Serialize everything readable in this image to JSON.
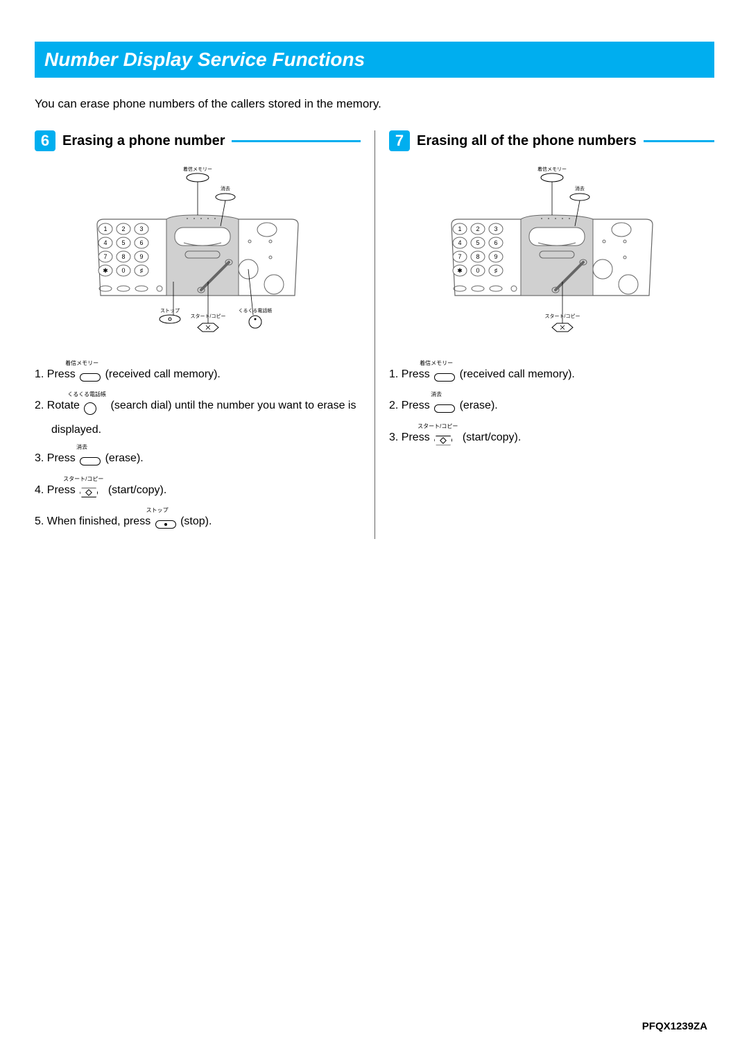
{
  "colors": {
    "accent": "#00aeef",
    "text": "#000000",
    "panel_fill": "#d0d0d0",
    "panel_stroke": "#666666",
    "background": "#ffffff"
  },
  "title": "Number Display Service Functions",
  "intro": "You can erase phone numbers of the callers stored in the memory.",
  "footer_code": "PFQX1239ZA",
  "sections": [
    {
      "number": "6",
      "title": "Erasing a phone number",
      "diagram": {
        "keypad_rows": [
          [
            "1",
            "2",
            "3"
          ],
          [
            "4",
            "5",
            "6"
          ],
          [
            "7",
            "8",
            "9"
          ],
          [
            "✱",
            "0",
            "♯"
          ]
        ],
        "callouts": {
          "top_memory": {
            "jp": "着信メモリー",
            "type": "oval"
          },
          "erase": {
            "jp": "消去",
            "type": "oval"
          },
          "stop": {
            "jp": "ストップ",
            "type": "oval-dot"
          },
          "start_copy": {
            "jp": "スタート/コピー",
            "type": "diamond"
          },
          "dial": {
            "jp": "くるくる電話帳",
            "type": "circle"
          }
        }
      },
      "steps": [
        {
          "n": "1.",
          "pre": "Press ",
          "btn": {
            "kind": "oval",
            "jp": "着信メモリー"
          },
          "post": " (received call memory)."
        },
        {
          "n": "2.",
          "pre": "Rotate ",
          "btn": {
            "kind": "circle",
            "jp": "くるくる電話帳"
          },
          "post": " (search dial) until the number you want to erase is displayed."
        },
        {
          "n": "3.",
          "pre": "Press ",
          "btn": {
            "kind": "oval",
            "jp": "消去"
          },
          "post": " (erase)."
        },
        {
          "n": "4.",
          "pre": "Press ",
          "btn": {
            "kind": "diamond",
            "jp": "スタート/コピー"
          },
          "post": " (start/copy)."
        },
        {
          "n": "5.",
          "pre": "When finished, press ",
          "btn": {
            "kind": "oval-dot",
            "jp": "ストップ"
          },
          "post": " (stop)."
        }
      ]
    },
    {
      "number": "7",
      "title": "Erasing all of the phone numbers",
      "diagram": {
        "keypad_rows": [
          [
            "1",
            "2",
            "3"
          ],
          [
            "4",
            "5",
            "6"
          ],
          [
            "7",
            "8",
            "9"
          ],
          [
            "✱",
            "0",
            "♯"
          ]
        ],
        "callouts": {
          "top_memory": {
            "jp": "着信メモリー",
            "type": "oval"
          },
          "erase": {
            "jp": "消去",
            "type": "oval"
          },
          "start_copy": {
            "jp": "スタート/コピー",
            "type": "diamond"
          }
        }
      },
      "steps": [
        {
          "n": "1.",
          "pre": "Press ",
          "btn": {
            "kind": "oval",
            "jp": "着信メモリー"
          },
          "post": " (received call memory)."
        },
        {
          "n": "2.",
          "pre": "Press ",
          "btn": {
            "kind": "oval",
            "jp": "消去"
          },
          "post": " (erase)."
        },
        {
          "n": "3.",
          "pre": "Press ",
          "btn": {
            "kind": "diamond",
            "jp": "スタート/コピー"
          },
          "post": " (start/copy)."
        }
      ]
    }
  ]
}
